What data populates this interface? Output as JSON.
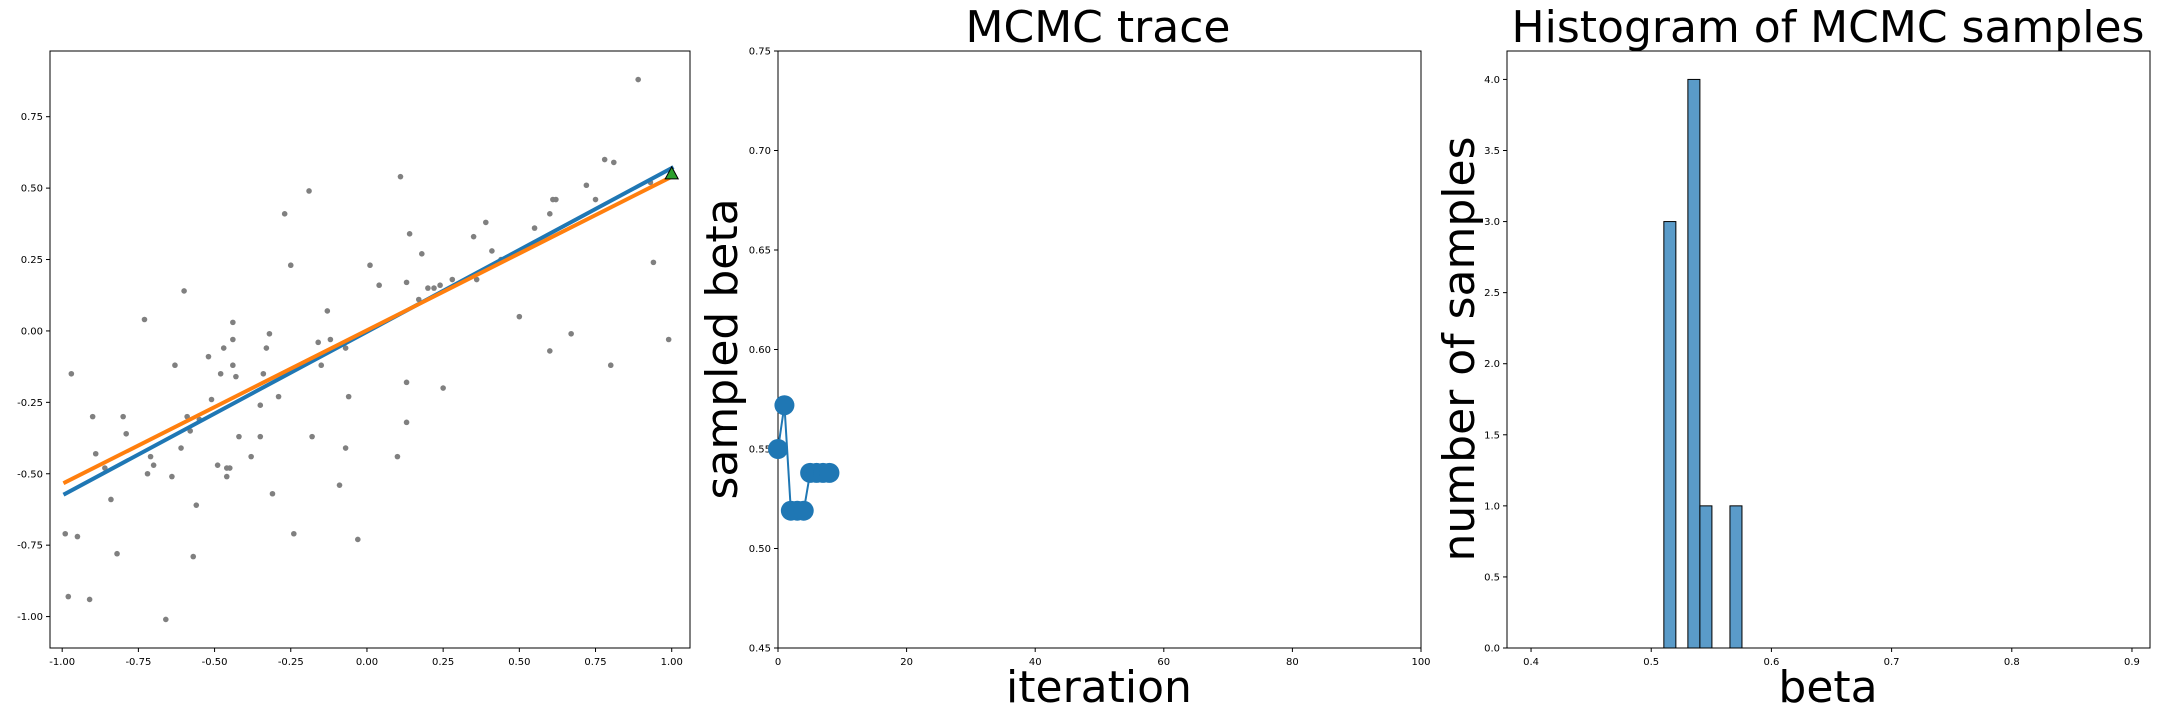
{
  "chart_data": [
    {
      "type": "scatter",
      "title": "",
      "xlabel": "",
      "ylabel": "",
      "xlim": [
        -1.04,
        1.06
      ],
      "ylim": [
        -1.11,
        0.98
      ],
      "xticks": [
        "-1.00",
        "-0.75",
        "-0.50",
        "-0.25",
        "0.00",
        "0.25",
        "0.50",
        "0.75",
        "1.00"
      ],
      "yticks": [
        "-1.00",
        "-0.75",
        "-0.50",
        "-0.25",
        "0.00",
        "0.25",
        "0.50",
        "0.75"
      ],
      "point_color": "#808080",
      "points": [
        [
          -0.99,
          -0.71
        ],
        [
          -0.98,
          -0.93
        ],
        [
          -0.97,
          -0.15
        ],
        [
          -0.95,
          -0.72
        ],
        [
          -0.91,
          -0.94
        ],
        [
          -0.9,
          -0.3
        ],
        [
          -0.89,
          -0.43
        ],
        [
          -0.86,
          -0.48
        ],
        [
          -0.84,
          -0.59
        ],
        [
          -0.82,
          -0.78
        ],
        [
          -0.8,
          -0.3
        ],
        [
          -0.79,
          -0.36
        ],
        [
          -0.73,
          0.04
        ],
        [
          -0.72,
          -0.5
        ],
        [
          -0.71,
          -0.44
        ],
        [
          -0.7,
          -0.47
        ],
        [
          -0.66,
          -1.01
        ],
        [
          -0.64,
          -0.51
        ],
        [
          -0.63,
          -0.12
        ],
        [
          -0.61,
          -0.41
        ],
        [
          -0.6,
          0.14
        ],
        [
          -0.59,
          -0.3
        ],
        [
          -0.58,
          -0.35
        ],
        [
          -0.57,
          -0.79
        ],
        [
          -0.56,
          -0.61
        ],
        [
          -0.55,
          -0.31
        ],
        [
          -0.52,
          -0.09
        ],
        [
          -0.51,
          -0.24
        ],
        [
          -0.49,
          -0.47
        ],
        [
          -0.48,
          -0.15
        ],
        [
          -0.47,
          -0.06
        ],
        [
          -0.46,
          -0.48
        ],
        [
          -0.46,
          -0.51
        ],
        [
          -0.45,
          -0.48
        ],
        [
          -0.44,
          -0.03
        ],
        [
          -0.44,
          0.03
        ],
        [
          -0.44,
          -0.12
        ],
        [
          -0.43,
          -0.16
        ],
        [
          -0.42,
          -0.37
        ],
        [
          -0.38,
          -0.44
        ],
        [
          -0.35,
          -0.26
        ],
        [
          -0.35,
          -0.37
        ],
        [
          -0.34,
          -0.15
        ],
        [
          -0.33,
          -0.06
        ],
        [
          -0.32,
          -0.01
        ],
        [
          -0.31,
          -0.57
        ],
        [
          -0.29,
          -0.23
        ],
        [
          -0.27,
          0.41
        ],
        [
          -0.25,
          0.23
        ],
        [
          -0.24,
          -0.71
        ],
        [
          -0.19,
          0.49
        ],
        [
          -0.18,
          -0.37
        ],
        [
          -0.16,
          -0.04
        ],
        [
          -0.15,
          -0.12
        ],
        [
          -0.13,
          0.07
        ],
        [
          -0.12,
          -0.03
        ],
        [
          -0.09,
          -0.54
        ],
        [
          -0.07,
          -0.06
        ],
        [
          -0.06,
          -0.23
        ],
        [
          -0.07,
          -0.41
        ],
        [
          -0.03,
          -0.73
        ],
        [
          0.01,
          0.23
        ],
        [
          0.04,
          0.16
        ],
        [
          0.1,
          -0.44
        ],
        [
          0.11,
          0.54
        ],
        [
          0.13,
          -0.18
        ],
        [
          0.13,
          -0.32
        ],
        [
          0.13,
          0.17
        ],
        [
          0.14,
          0.34
        ],
        [
          0.17,
          0.11
        ],
        [
          0.18,
          0.27
        ],
        [
          0.2,
          0.15
        ],
        [
          0.22,
          0.15
        ],
        [
          0.24,
          0.16
        ],
        [
          0.25,
          -0.2
        ],
        [
          0.28,
          0.18
        ],
        [
          0.35,
          0.33
        ],
        [
          0.36,
          0.18
        ],
        [
          0.39,
          0.38
        ],
        [
          0.41,
          0.28
        ],
        [
          0.44,
          0.25
        ],
        [
          0.5,
          0.05
        ],
        [
          0.55,
          0.36
        ],
        [
          0.6,
          0.41
        ],
        [
          0.6,
          -0.07
        ],
        [
          0.61,
          0.46
        ],
        [
          0.62,
          0.46
        ],
        [
          0.67,
          -0.01
        ],
        [
          0.72,
          0.51
        ],
        [
          0.75,
          0.46
        ],
        [
          0.78,
          0.6
        ],
        [
          0.8,
          -0.12
        ],
        [
          0.81,
          0.59
        ],
        [
          0.89,
          0.88
        ],
        [
          0.93,
          0.52
        ],
        [
          0.94,
          0.24
        ],
        [
          0.99,
          -0.03
        ]
      ],
      "lines": [
        {
          "color": "#1f77b4",
          "points": [
            [
              -0.99,
              -0.57
            ],
            [
              1.0,
              0.57
            ]
          ]
        },
        {
          "color": "#ff7f0e",
          "points": [
            [
              -0.99,
              -0.53
            ],
            [
              1.0,
              0.54
            ]
          ]
        }
      ],
      "marker": {
        "shape": "triangle",
        "color": "#2ca02c",
        "point": [
          1.0,
          0.55
        ]
      }
    },
    {
      "type": "line",
      "title": "MCMC trace",
      "xlabel": "iteration",
      "ylabel": "sampled beta",
      "xlim": [
        0,
        100
      ],
      "ylim": [
        0.45,
        0.75
      ],
      "xticks": [
        "0",
        "20",
        "40",
        "60",
        "80",
        "100"
      ],
      "yticks": [
        "0.45",
        "0.50",
        "0.55",
        "0.60",
        "0.65",
        "0.70",
        "0.75"
      ],
      "color": "#1f77b4",
      "x": [
        0,
        1,
        2,
        3,
        4,
        5,
        6,
        7,
        8
      ],
      "y": [
        0.55,
        0.572,
        0.519,
        0.519,
        0.519,
        0.538,
        0.538,
        0.538,
        0.538
      ]
    },
    {
      "type": "bar",
      "title": "Histogram of MCMC samples",
      "xlabel": "beta",
      "ylabel": "number of samples",
      "xlim": [
        0.38,
        0.915
      ],
      "ylim": [
        0,
        4.2
      ],
      "xticks": [
        "0.4",
        "0.5",
        "0.6",
        "0.7",
        "0.8",
        "0.9"
      ],
      "yticks": [
        "0.0",
        "0.5",
        "1.0",
        "1.5",
        "2.0",
        "2.5",
        "3.0",
        "3.5",
        "4.0"
      ],
      "color": "#5a9bc9",
      "bins": [
        {
          "start": 0.5105,
          "end": 0.5205,
          "count": 3
        },
        {
          "start": 0.5305,
          "end": 0.5405,
          "count": 4
        },
        {
          "start": 0.5405,
          "end": 0.5505,
          "count": 1
        },
        {
          "start": 0.5655,
          "end": 0.5755,
          "count": 1
        }
      ]
    }
  ]
}
